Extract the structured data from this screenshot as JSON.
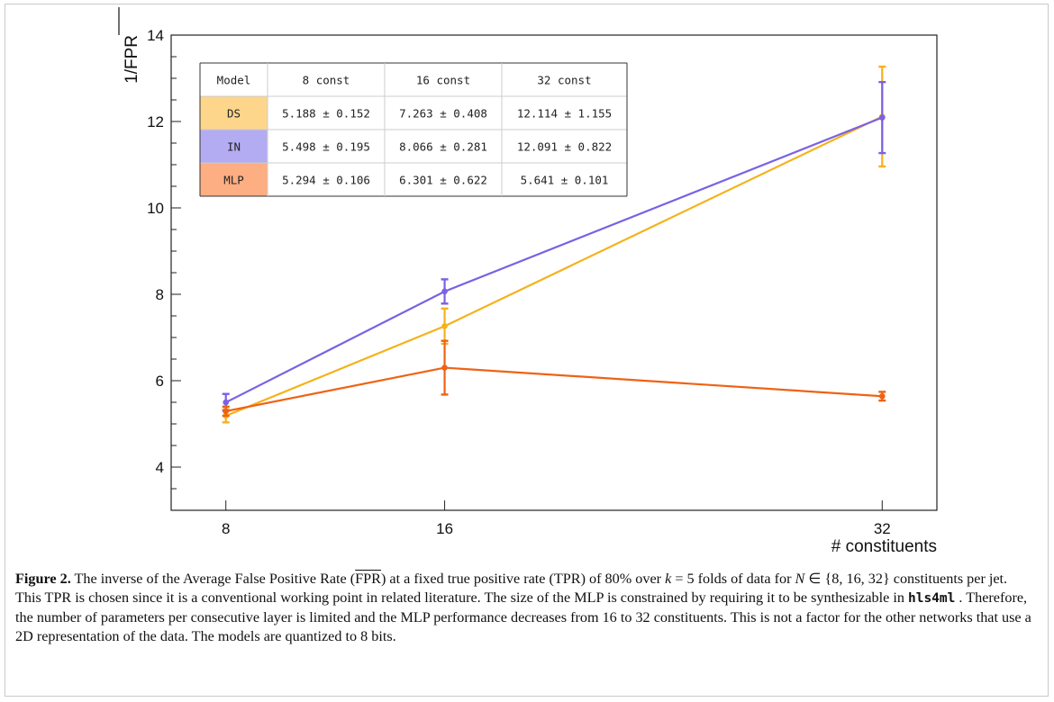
{
  "chart_data": {
    "type": "line",
    "ylabel": "1/FPR",
    "xlabel": "# constituents",
    "x": [
      8,
      16,
      32
    ],
    "x_ticks": [
      "8",
      "16",
      "32"
    ],
    "y_ticks": [
      "4",
      "6",
      "8",
      "10",
      "12",
      "14"
    ],
    "ylim": [
      3,
      14
    ],
    "xlim": [
      6,
      34
    ],
    "grid": false,
    "series": [
      {
        "name": "DS",
        "color": "#f5b21b",
        "values": [
          5.188,
          7.263,
          12.114
        ],
        "errors": [
          0.152,
          0.408,
          1.155
        ]
      },
      {
        "name": "IN",
        "color": "#7b61e3",
        "values": [
          5.498,
          8.066,
          12.091
        ],
        "errors": [
          0.195,
          0.281,
          0.822
        ]
      },
      {
        "name": "MLP",
        "color": "#ef6214",
        "values": [
          5.294,
          6.301,
          5.641
        ],
        "errors": [
          0.106,
          0.622,
          0.101
        ]
      }
    ],
    "table": {
      "headers": [
        "Model",
        "8 const",
        "16 const",
        "32 const"
      ],
      "rows": [
        {
          "model": "DS",
          "color": "#fdd68b",
          "cells": [
            "5.188 ± 0.152",
            "7.263 ± 0.408",
            "12.114 ± 1.155"
          ]
        },
        {
          "model": "IN",
          "color": "#b3acf3",
          "cells": [
            "5.498 ± 0.195",
            "8.066 ± 0.281",
            "12.091 ± 0.822"
          ]
        },
        {
          "model": "MLP",
          "color": "#fdae82",
          "cells": [
            "5.294 ± 0.106",
            "6.301 ± 0.622",
            "5.641 ± 0.101"
          ]
        }
      ]
    }
  },
  "caption": {
    "label": "Figure 2.",
    "p1": " The inverse of the Average False Positive Rate (",
    "fpr": "FPR",
    "p2": ") at a fixed true positive rate (TPR) of 80% over ",
    "k": "k",
    "p3": " = 5 folds of data for ",
    "n": "N",
    "p4": " ∈ {8, 16, 32} constituents per jet. This TPR is chosen since it is a conventional working point in related literature. The size of the MLP is constrained by requiring it to be synthesizable in ",
    "code": "hls4ml",
    "p5": " . Therefore, the number of parameters per consecutive layer is limited and the MLP performance decreases from 16 to 32 constituents. This is not a factor for the other networks that use a 2D representation of the data. The models are quantized to 8 bits."
  }
}
